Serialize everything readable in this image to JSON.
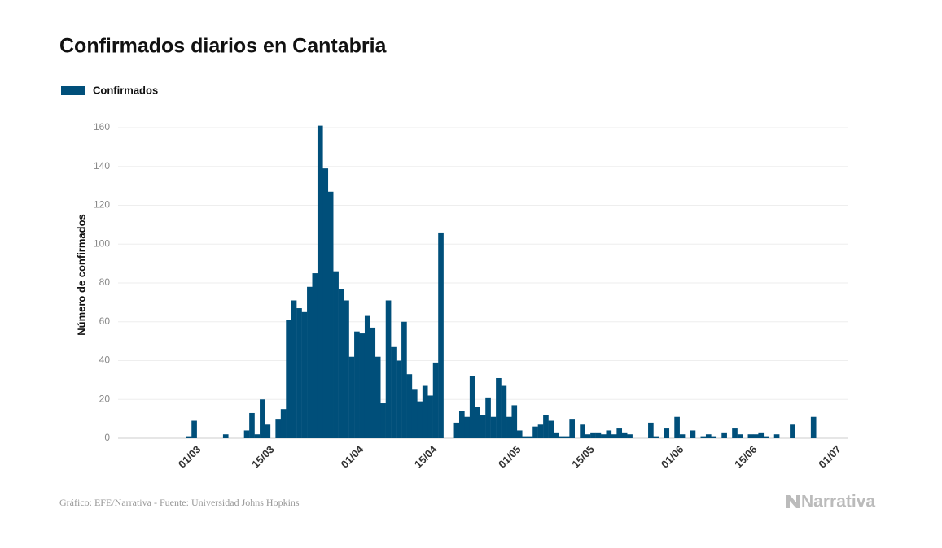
{
  "chart_data": {
    "type": "bar",
    "title": "Confirmados diarios en Cantabria",
    "y_label": "Número de confirmados",
    "source": "Gráfico: EFE/Narrativa - Fuente: Universidad Johns Hopkins",
    "logo": "Narrativa",
    "legend": "top-left",
    "grid": true,
    "ylim": [
      0,
      160
    ],
    "yticks": [
      0,
      20,
      40,
      60,
      80,
      100,
      120,
      140,
      160
    ],
    "categories": [
      null,
      null,
      null,
      null,
      null,
      null,
      null,
      null,
      null,
      null,
      null,
      null,
      null,
      null,
      null,
      "01/03",
      null,
      null,
      null,
      null,
      null,
      null,
      null,
      null,
      null,
      null,
      null,
      null,
      null,
      "15/03",
      null,
      null,
      null,
      null,
      null,
      null,
      null,
      null,
      null,
      null,
      null,
      null,
      null,
      null,
      null,
      null,
      "01/04",
      null,
      null,
      null,
      null,
      null,
      null,
      null,
      null,
      null,
      null,
      null,
      null,
      null,
      "15/04",
      null,
      null,
      null,
      null,
      null,
      null,
      null,
      null,
      null,
      null,
      null,
      null,
      null,
      null,
      null,
      "01/05",
      null,
      null,
      null,
      null,
      null,
      null,
      null,
      null,
      null,
      null,
      null,
      null,
      null,
      "15/05",
      null,
      null,
      null,
      null,
      null,
      null,
      null,
      null,
      null,
      null,
      null,
      null,
      null,
      null,
      null,
      null,
      "01/06",
      null,
      null,
      null,
      null,
      null,
      null,
      null,
      null,
      null,
      null,
      null,
      null,
      null,
      "15/06",
      null,
      null,
      null,
      null,
      null,
      null,
      null,
      null,
      null,
      null,
      null,
      null,
      null,
      null,
      null,
      "01/07",
      null
    ],
    "series": [
      {
        "name": "Confirmados",
        "color": "#004f7a",
        "values": [
          0,
          0,
          0,
          0,
          0,
          0,
          0,
          0,
          0,
          0,
          0,
          0,
          0,
          1,
          9,
          0,
          0,
          0,
          0,
          0,
          2,
          0,
          0,
          0,
          4,
          13,
          2,
          20,
          7,
          0,
          10,
          15,
          61,
          71,
          67,
          65,
          78,
          85,
          161,
          139,
          127,
          86,
          77,
          71,
          42,
          55,
          54,
          63,
          57,
          42,
          18,
          71,
          47,
          40,
          60,
          33,
          25,
          19,
          27,
          22,
          39,
          106,
          0,
          0,
          8,
          14,
          11,
          32,
          16,
          12,
          21,
          11,
          31,
          27,
          11,
          17,
          4,
          1,
          1,
          6,
          7,
          12,
          9,
          3,
          1,
          1,
          10,
          0,
          7,
          2,
          3,
          3,
          2,
          4,
          2,
          5,
          3,
          2,
          0,
          0,
          0,
          8,
          1,
          0,
          5,
          0,
          11,
          2,
          0,
          4,
          0,
          1,
          2,
          1,
          0,
          3,
          0,
          5,
          2,
          0,
          2,
          2,
          3,
          1,
          0,
          2,
          0,
          0,
          7,
          0,
          0,
          0,
          11,
          0,
          0,
          0,
          0,
          0,
          0
        ]
      }
    ]
  }
}
